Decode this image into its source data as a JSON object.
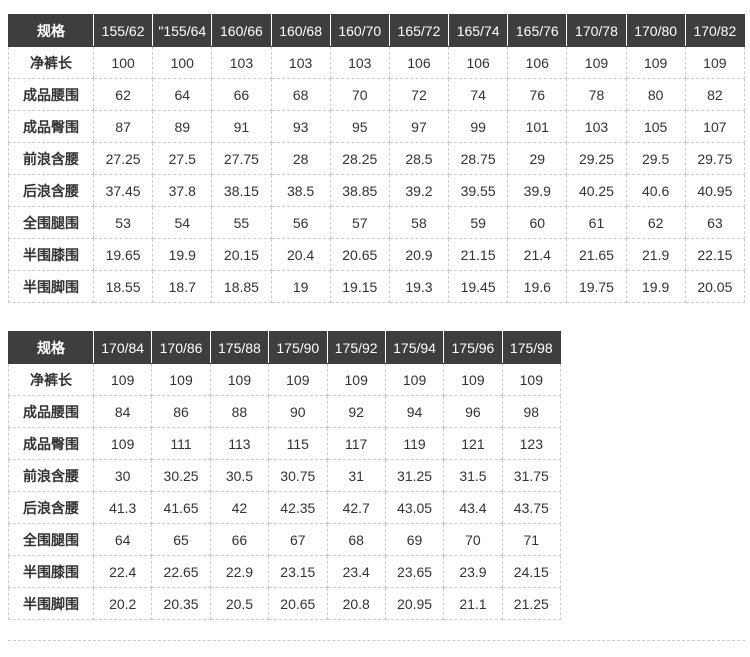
{
  "colors": {
    "header_bg": "#3e3e3e",
    "header_text": "#ffffff",
    "body_text": "#333333",
    "border": "#cccccc"
  },
  "tables": [
    {
      "name": "size-table-1",
      "header": [
        "规格",
        "155/62",
        "\"155/64",
        "160/66",
        "160/68",
        "160/70",
        "165/72",
        "165/74",
        "165/76",
        "170/78",
        "170/80",
        "170/82"
      ],
      "rows": [
        {
          "label": "净裤长",
          "values": [
            "100",
            "100",
            "103",
            "103",
            "103",
            "106",
            "106",
            "106",
            "109",
            "109",
            "109"
          ]
        },
        {
          "label": "成品腰围",
          "values": [
            "62",
            "64",
            "66",
            "68",
            "70",
            "72",
            "74",
            "76",
            "78",
            "80",
            "82"
          ]
        },
        {
          "label": "成品臀围",
          "values": [
            "87",
            "89",
            "91",
            "93",
            "95",
            "97",
            "99",
            "101",
            "103",
            "105",
            "107"
          ]
        },
        {
          "label": "前浪含腰",
          "values": [
            "27.25",
            "27.5",
            "27.75",
            "28",
            "28.25",
            "28.5",
            "28.75",
            "29",
            "29.25",
            "29.5",
            "29.75"
          ]
        },
        {
          "label": "后浪含腰",
          "values": [
            "37.45",
            "37.8",
            "38.15",
            "38.5",
            "38.85",
            "39.2",
            "39.55",
            "39.9",
            "40.25",
            "40.6",
            "40.95"
          ]
        },
        {
          "label": "全围腿围",
          "values": [
            "53",
            "54",
            "55",
            "56",
            "57",
            "58",
            "59",
            "60",
            "61",
            "62",
            "63"
          ]
        },
        {
          "label": "半围膝围",
          "values": [
            "19.65",
            "19.9",
            "20.15",
            "20.4",
            "20.65",
            "20.9",
            "21.15",
            "21.4",
            "21.65",
            "21.9",
            "22.15"
          ]
        },
        {
          "label": "半围脚围",
          "values": [
            "18.55",
            "18.7",
            "18.85",
            "19",
            "19.15",
            "19.3",
            "19.45",
            "19.6",
            "19.75",
            "19.9",
            "20.05"
          ]
        }
      ]
    },
    {
      "name": "size-table-2",
      "header": [
        "规格",
        "170/84",
        "170/86",
        "175/88",
        "175/90",
        "175/92",
        "175/94",
        "175/96",
        "175/98"
      ],
      "rows": [
        {
          "label": "净裤长",
          "values": [
            "109",
            "109",
            "109",
            "109",
            "109",
            "109",
            "109",
            "109"
          ]
        },
        {
          "label": "成品腰围",
          "values": [
            "84",
            "86",
            "88",
            "90",
            "92",
            "94",
            "96",
            "98"
          ]
        },
        {
          "label": "成品臀围",
          "values": [
            "109",
            "111",
            "113",
            "115",
            "117",
            "119",
            "121",
            "123"
          ]
        },
        {
          "label": "前浪含腰",
          "values": [
            "30",
            "30.25",
            "30.5",
            "30.75",
            "31",
            "31.25",
            "31.5",
            "31.75"
          ]
        },
        {
          "label": "后浪含腰",
          "values": [
            "41.3",
            "41.65",
            "42",
            "42.35",
            "42.7",
            "43.05",
            "43.4",
            "43.75"
          ]
        },
        {
          "label": "全围腿围",
          "values": [
            "64",
            "65",
            "66",
            "67",
            "68",
            "69",
            "70",
            "71"
          ]
        },
        {
          "label": "半围膝围",
          "values": [
            "22.4",
            "22.65",
            "22.9",
            "23.15",
            "23.4",
            "23.65",
            "23.9",
            "24.15"
          ]
        },
        {
          "label": "半围脚围",
          "values": [
            "20.2",
            "20.35",
            "20.5",
            "20.65",
            "20.8",
            "20.95",
            "21.1",
            "21.25"
          ]
        }
      ]
    }
  ]
}
